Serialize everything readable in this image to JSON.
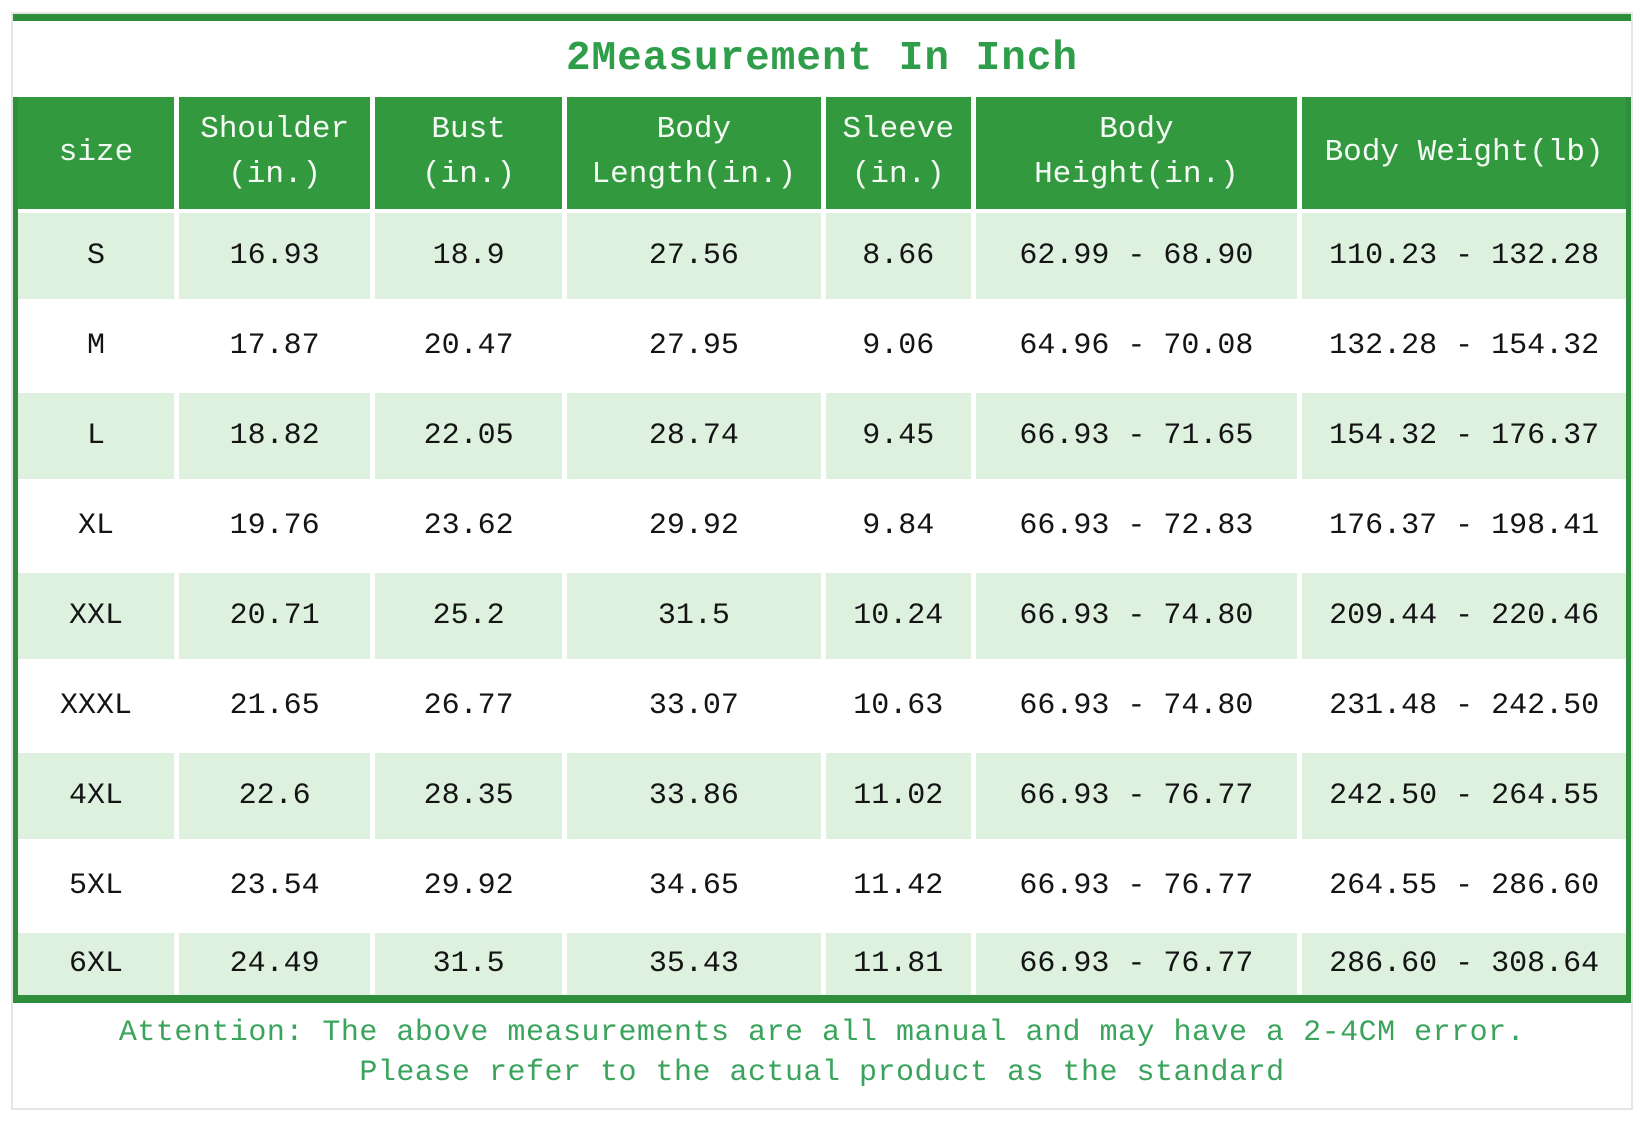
{
  "title": "2Measurement In Inch",
  "colors": {
    "header_green": "#33993f",
    "border_green": "#2e8e3b",
    "row_green": "#ddf1de",
    "title_green": "#2f9e4a",
    "note_green": "#3aa45c"
  },
  "table": {
    "headers": [
      "size",
      "Shoulder\n(in.)",
      "Bust\n(in.)",
      "Body\nLength(in.)",
      "Sleeve\n(in.)",
      "Body\nHeight(in.)",
      "Body Weight(lb)"
    ],
    "rows": [
      [
        "S",
        "16.93",
        "18.9",
        "27.56",
        "8.66",
        "62.99 - 68.90",
        "110.23 - 132.28"
      ],
      [
        "M",
        "17.87",
        "20.47",
        "27.95",
        "9.06",
        "64.96 - 70.08",
        "132.28 - 154.32"
      ],
      [
        "L",
        "18.82",
        "22.05",
        "28.74",
        "9.45",
        "66.93 - 71.65",
        "154.32 - 176.37"
      ],
      [
        "XL",
        "19.76",
        "23.62",
        "29.92",
        "9.84",
        "66.93 - 72.83",
        "176.37 - 198.41"
      ],
      [
        "XXL",
        "20.71",
        "25.2",
        "31.5",
        "10.24",
        "66.93 - 74.80",
        "209.44 - 220.46"
      ],
      [
        "XXXL",
        "21.65",
        "26.77",
        "33.07",
        "10.63",
        "66.93 - 74.80",
        "231.48 - 242.50"
      ],
      [
        "4XL",
        "22.6",
        "28.35",
        "33.86",
        "11.02",
        "66.93 - 76.77",
        "242.50 - 264.55"
      ],
      [
        "5XL",
        "23.54",
        "29.92",
        "34.65",
        "11.42",
        "66.93 - 76.77",
        "264.55 - 286.60"
      ],
      [
        "6XL",
        "24.49",
        "31.5",
        "35.43",
        "11.81",
        "66.93 - 76.77",
        "286.60 - 308.64"
      ]
    ]
  },
  "note": {
    "line1": "Attention: The above measurements are all manual and may have a 2-4CM error.",
    "line2": "Please refer to the actual product as the standard"
  }
}
